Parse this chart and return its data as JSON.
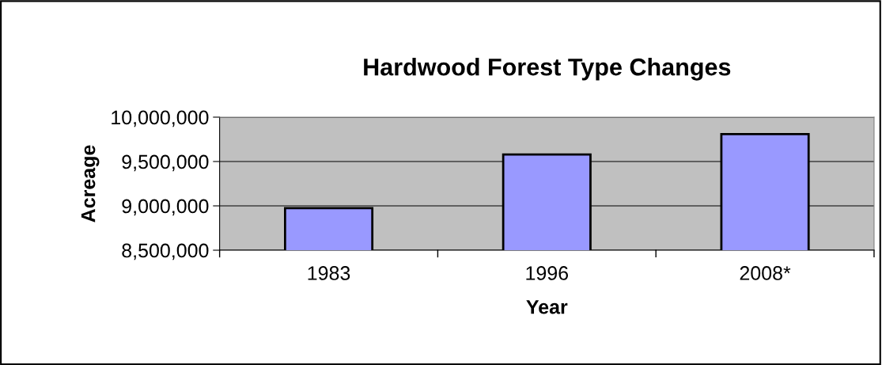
{
  "chart_data": {
    "type": "bar",
    "title": "Hardwood Forest Type Changes",
    "xlabel": "Year",
    "ylabel": "Acreage",
    "categories": [
      "1983",
      "1996",
      "2008*"
    ],
    "values": [
      8975000,
      9580000,
      9810000
    ],
    "color": "#9999ff",
    "ylim": [
      8500000,
      10000000
    ],
    "yticks": [
      {
        "value": 8500000,
        "label": "8,500,000"
      },
      {
        "value": 9000000,
        "label": "9,000,000"
      },
      {
        "value": 9500000,
        "label": "9,500,000"
      },
      {
        "value": 10000000,
        "label": "10,000,000"
      }
    ],
    "grid": "y"
  }
}
